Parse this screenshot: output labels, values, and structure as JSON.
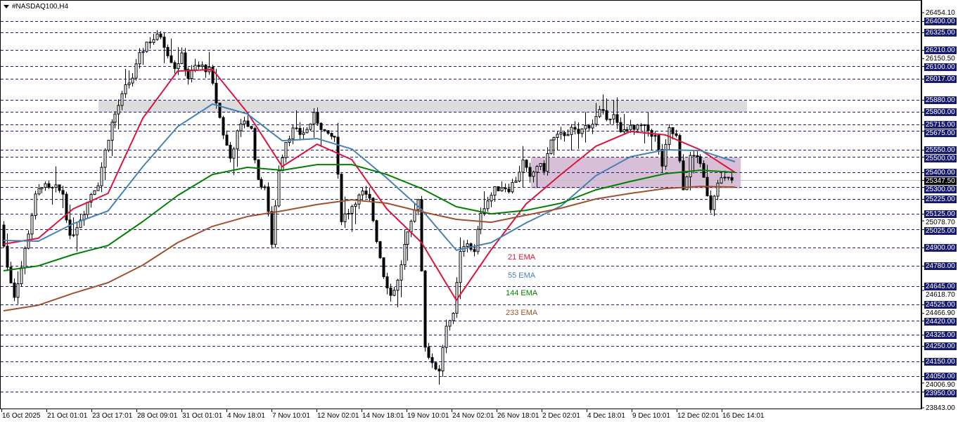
{
  "header": {
    "symbol_title": "#NASDAQ100,H4",
    "menu_icon": "triangle-down-icon"
  },
  "colors": {
    "ema21": "#dc143c",
    "ema55": "#4682b4",
    "ema144": "#008000",
    "ema233": "#a0522d",
    "level_line": "#1f1f7a",
    "level_box": "#151a6b",
    "supply_zone": "#dcdcdc",
    "range_zone": "#d8bfd8",
    "current_price_line": "#c0c0c0"
  },
  "chart_data": {
    "type": "candlestick",
    "timeframe": "H4",
    "ylim": [
      23843.0,
      26454.1
    ],
    "grid": false,
    "x_tick_labels": [
      "16 Oct 2025",
      "21 Oct 01:01",
      "23 Oct 17:01",
      "28 Oct 09:01",
      "31 Oct 01:01",
      "4 Nov 18:01",
      "7 Nov 10:01",
      "12 Nov 02:01",
      "14 Nov 18:01",
      "19 Nov 10:01",
      "24 Nov 02:01",
      "26 Nov 18:01",
      "2 Dec 02:01",
      "4 Dec 18:01",
      "9 Dec 10:01",
      "12 Dec 02:01",
      "16 Dec 14:01"
    ],
    "current_price": "25347.50",
    "level_labels": [
      "26400.00",
      "26325.00",
      "26210.00",
      "26100.00",
      "26017.00",
      "25880.00",
      "25800.00",
      "25715.00",
      "25675.00",
      "25550.00",
      "25500.00",
      "25400.00",
      "25300.00",
      "25225.00",
      "25125.00",
      "25025.00",
      "24900.00",
      "24780.00",
      "24645.00",
      "24525.00",
      "24420.00",
      "24325.00",
      "24250.00",
      "24150.00",
      "24050.00",
      "23950.00"
    ],
    "plain_labels": [
      "26454.10",
      "26150.50",
      "25078.70",
      "24618.70",
      "24466.90",
      "24006.90",
      "23843.00"
    ],
    "zones": [
      {
        "name": "supply-zone",
        "top": 25873,
        "bottom": 25794
      },
      {
        "name": "range-zone",
        "top": 25497,
        "bottom": 25293
      }
    ],
    "close_path": [
      25051,
      24772,
      24586,
      24772,
      25005,
      25237,
      25320,
      25283,
      25293,
      25260,
      24958,
      25051,
      25144,
      25260,
      25330,
      25539,
      25725,
      25841,
      25957,
      26027,
      26166,
      26259,
      26282,
      26305,
      26189,
      26096,
      26166,
      26027,
      26096,
      26096,
      26073,
      25864,
      25655,
      25493,
      25655,
      25748,
      25678,
      25330,
      25307,
      24935,
      25423,
      25608,
      25678,
      25655,
      25678,
      25771,
      25702,
      25632,
      25632,
      25097,
      25144,
      25214,
      25260,
      25214,
      24958,
      24726,
      24586,
      24679,
      24912,
      25051,
      25237,
      24261,
      24121,
      24098,
      24400,
      24447,
      24865,
      24935,
      24865,
      25144,
      25214,
      25283,
      25307,
      25293,
      25353,
      25469,
      25353,
      25446,
      25423,
      25608,
      25632,
      25655,
      25678,
      25655,
      25702,
      25725,
      25794,
      25771,
      25771,
      25655,
      25702,
      25678,
      25702,
      25678,
      25632,
      25446,
      25678,
      25632,
      25283,
      25493,
      25516,
      25353,
      25167,
      25353,
      25353,
      25347.5
    ],
    "series": [
      {
        "name": "21 EMA",
        "values": [
          24925,
          24963,
          25158,
          25260,
          25757,
          26068,
          26078,
          25794,
          25437,
          25585,
          25483,
          25158,
          24935,
          24554,
          24888,
          25190,
          25385,
          25571,
          25669,
          25646,
          25548,
          25399
        ]
      },
      {
        "name": "55 EMA",
        "values": [
          24949,
          24944,
          25060,
          25144,
          25437,
          25701,
          25850,
          25785,
          25608,
          25622,
          25553,
          25362,
          25153,
          24884,
          24935,
          25065,
          25176,
          25376,
          25502,
          25548,
          25543,
          25469
        ]
      },
      {
        "name": "144 EMA",
        "values": [
          24749,
          24781,
          24856,
          24916,
          25074,
          25246,
          25385,
          25432,
          25413,
          25450,
          25450,
          25385,
          25292,
          25172,
          25125,
          25148,
          25195,
          25283,
          25339,
          25390,
          25413,
          25399
        ]
      },
      {
        "name": "233 EMA",
        "values": [
          24484,
          24521,
          24600,
          24670,
          24786,
          24935,
          25042,
          25107,
          25144,
          25186,
          25218,
          25195,
          25139,
          25088,
          25069,
          25116,
          25162,
          25223,
          25260,
          25292,
          25306,
          25302
        ]
      }
    ]
  }
}
